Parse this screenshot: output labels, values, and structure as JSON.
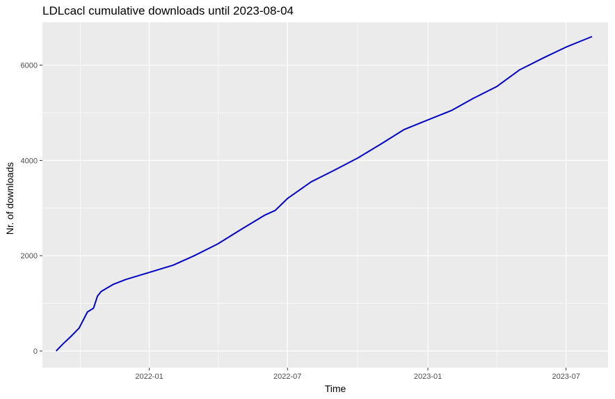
{
  "chart_data": {
    "type": "line",
    "title": "LDLcacl cumulative downloads until 2023-08-04",
    "xlabel": "Time",
    "ylabel": "Nr. of downloads",
    "x_ticks": [
      "2022-01",
      "2022-07",
      "2023-01",
      "2023-07"
    ],
    "y_ticks": [
      "0",
      "2000",
      "4000",
      "6000"
    ],
    "ylim": [
      -350,
      6900
    ],
    "xlim": [
      "2021-08-14",
      "2023-08-25"
    ],
    "grid": true,
    "legend": "none",
    "series": [
      {
        "color": "#0000cc",
        "x": [
          "2021-09-01",
          "2021-09-10",
          "2021-09-20",
          "2021-10-01",
          "2021-10-12",
          "2021-10-20",
          "2021-10-25",
          "2021-10-30",
          "2021-11-15",
          "2021-12-01",
          "2022-01-01",
          "2022-02-01",
          "2022-03-01",
          "2022-04-01",
          "2022-05-01",
          "2022-06-01",
          "2022-06-15",
          "2022-07-01",
          "2022-08-01",
          "2022-09-01",
          "2022-10-01",
          "2022-11-01",
          "2022-12-01",
          "2023-01-01",
          "2023-02-01",
          "2023-03-01",
          "2023-04-01",
          "2023-05-01",
          "2023-06-01",
          "2023-07-01",
          "2023-08-04"
        ],
        "y": [
          0,
          150,
          300,
          480,
          820,
          900,
          1150,
          1250,
          1400,
          1500,
          1650,
          1800,
          2000,
          2250,
          2550,
          2850,
          2950,
          3200,
          3550,
          3800,
          4050,
          4350,
          4650,
          4850,
          5050,
          5300,
          5550,
          5900,
          6150,
          6380,
          6600
        ]
      }
    ]
  }
}
